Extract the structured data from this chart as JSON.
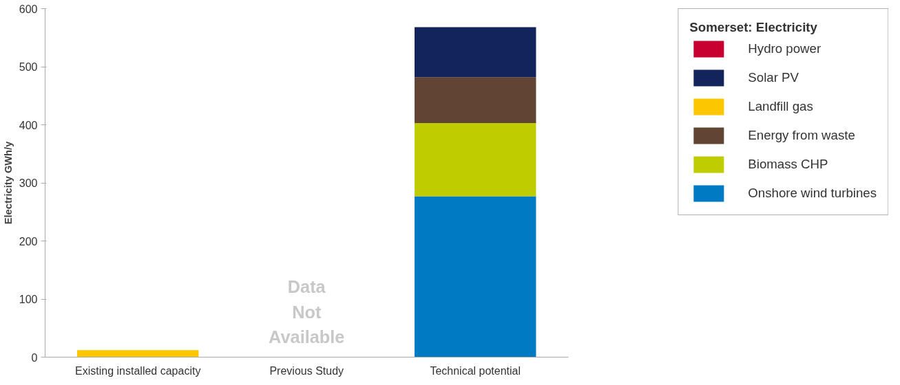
{
  "chart_data": {
    "type": "bar",
    "stacked": true,
    "ylabel": "Electricity GWh/y",
    "legend_title": "Somerset: Electricity",
    "legend": "top right",
    "grid": false,
    "categories": [
      "Existing installed capacity",
      "Previous Study",
      "Technical potential"
    ],
    "ylim": [
      0,
      600
    ],
    "yticks": [
      0,
      100,
      200,
      300,
      400,
      500,
      600
    ],
    "series": [
      {
        "name": "Onshore wind turbines",
        "color": "#007ac2",
        "values": [
          0,
          null,
          277
        ]
      },
      {
        "name": "Biomass CHP",
        "color": "#bfcd00",
        "values": [
          0,
          null,
          126
        ]
      },
      {
        "name": "Energy from waste",
        "color": "#624434",
        "values": [
          0,
          null,
          79
        ]
      },
      {
        "name": "Landfill gas",
        "color": "#fcc600",
        "values": [
          12,
          null,
          0
        ]
      },
      {
        "name": "Solar PV",
        "color": "#13235c",
        "values": [
          0,
          null,
          86
        ]
      },
      {
        "name": "Hydro power",
        "color": "#c80032",
        "values": [
          0,
          null,
          0
        ]
      }
    ],
    "annotations": [
      "Data\nNot\nAvailable"
    ]
  }
}
